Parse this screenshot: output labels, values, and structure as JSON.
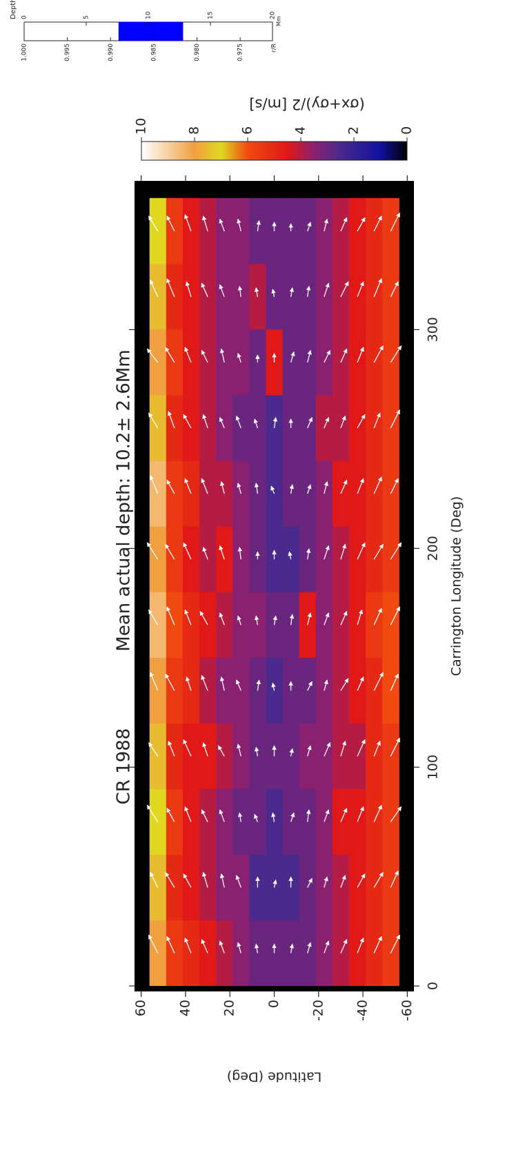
{
  "chart_data": {
    "type": "heatmap",
    "title": "CR 1988",
    "subtitle": "Mean actual depth: 10.2± 2.6Mm",
    "xlabel": "Carrington Longitude (Deg)",
    "ylabel": "Latitude (Deg)",
    "xlim": [
      -2.5,
      368
    ],
    "ylim": [
      -63,
      63
    ],
    "xticks": [
      0,
      100,
      200,
      300
    ],
    "yticks": [
      -60,
      -40,
      -20,
      0,
      20,
      40,
      60
    ],
    "plot_bg": "#000000",
    "arrow_color": "#ffffff",
    "x_edges": [
      0,
      30,
      60,
      90,
      120,
      150,
      180,
      210,
      240,
      270,
      300,
      330,
      360
    ],
    "y_edges": [
      56.25,
      48.75,
      41.25,
      33.75,
      26.25,
      18.75,
      11.25,
      3.75,
      -3.75,
      -11.25,
      -18.75,
      -26.25,
      -33.75,
      -41.25,
      -48.75,
      -56.25
    ],
    "values": [
      [
        8,
        7.5,
        7,
        7.5,
        8,
        8.5,
        8,
        8.5,
        7.5,
        8,
        7.5,
        7
      ],
      [
        5.5,
        5,
        5.5,
        5,
        5.5,
        6,
        5.5,
        5.5,
        5,
        5.5,
        5,
        5.5
      ],
      [
        5,
        4.5,
        4.5,
        4.5,
        5,
        5,
        4.5,
        5,
        4.5,
        4.5,
        4.5,
        4.5
      ],
      [
        4.5,
        4,
        4,
        4.5,
        4,
        4.5,
        4,
        4,
        4,
        4,
        4,
        4
      ],
      [
        4,
        3.5,
        3.5,
        4,
        3.5,
        4,
        4.5,
        4,
        3.5,
        3.5,
        3.5,
        3.5
      ],
      [
        3.5,
        3.5,
        3,
        3.5,
        3.5,
        3.5,
        3.5,
        3.5,
        3,
        3.5,
        3.5,
        3.5
      ],
      [
        3,
        2.5,
        3,
        3,
        3,
        3.5,
        3,
        3,
        3,
        3,
        4,
        3
      ],
      [
        3,
        2.5,
        2.5,
        3,
        2.5,
        3,
        2.5,
        2.5,
        2.5,
        4.5,
        3,
        3
      ],
      [
        3,
        2.5,
        3,
        3,
        3,
        3,
        2.5,
        3,
        3,
        3,
        3,
        3
      ],
      [
        3,
        3,
        3,
        3.5,
        3,
        4.5,
        3,
        3,
        3,
        3,
        3,
        3
      ],
      [
        3.5,
        3.5,
        3.5,
        3.5,
        3.5,
        3.5,
        3.5,
        3.5,
        4,
        3.5,
        3.5,
        3.5
      ],
      [
        4,
        4,
        4.5,
        4,
        4,
        4,
        4,
        4.5,
        4,
        4,
        4,
        4
      ],
      [
        4.5,
        4.5,
        4.5,
        4,
        4.5,
        4.5,
        4.5,
        4.5,
        4.5,
        4.5,
        4.5,
        4.5
      ],
      [
        5,
        5,
        5,
        5,
        5,
        5.5,
        5,
        5,
        5,
        5,
        5,
        5
      ],
      [
        5.5,
        5.5,
        5.5,
        5.5,
        6,
        6,
        5.5,
        5.5,
        5.5,
        5.5,
        5.5,
        5.5
      ]
    ],
    "vx": [
      [
        12,
        10,
        11,
        9,
        12,
        10,
        11,
        12,
        10,
        9,
        11,
        10
      ],
      [
        11,
        10,
        9,
        10,
        11,
        12,
        10,
        9,
        11,
        10,
        12,
        10
      ],
      [
        10,
        9,
        10,
        11,
        9,
        10,
        11,
        10,
        9,
        10,
        10,
        11
      ],
      [
        9,
        10,
        8,
        9,
        10,
        9,
        8,
        10,
        9,
        8,
        9,
        10
      ],
      [
        8,
        9,
        8,
        7,
        9,
        8,
        9,
        8,
        7,
        9,
        8,
        8
      ],
      [
        7,
        8,
        6,
        8,
        7,
        6,
        8,
        7,
        8,
        6,
        7,
        8
      ],
      [
        6,
        7,
        5,
        6,
        7,
        6,
        5,
        7,
        6,
        5,
        6,
        7
      ],
      [
        6,
        5,
        6,
        7,
        5,
        6,
        6,
        5,
        7,
        6,
        5,
        6
      ],
      [
        6,
        7,
        6,
        5,
        6,
        7,
        5,
        6,
        6,
        7,
        6,
        5
      ],
      [
        7,
        6,
        8,
        7,
        6,
        8,
        7,
        6,
        7,
        8,
        7,
        6
      ],
      [
        8,
        7,
        8,
        9,
        7,
        8,
        9,
        8,
        7,
        8,
        9,
        8
      ],
      [
        9,
        8,
        9,
        10,
        8,
        9,
        10,
        9,
        8,
        9,
        10,
        9
      ],
      [
        10,
        9,
        10,
        11,
        9,
        10,
        11,
        10,
        9,
        10,
        10,
        9
      ],
      [
        11,
        10,
        11,
        10,
        12,
        11,
        10,
        11,
        10,
        11,
        12,
        10
      ],
      [
        12,
        11,
        10,
        12,
        11,
        12,
        11,
        10,
        12,
        11,
        10,
        12
      ]
    ],
    "vy": [
      [
        6,
        5,
        7,
        6,
        5,
        6,
        7,
        5,
        6,
        7,
        5,
        6
      ],
      [
        5,
        6,
        5,
        4,
        6,
        5,
        6,
        5,
        4,
        6,
        5,
        5
      ],
      [
        4,
        5,
        4,
        5,
        3,
        4,
        5,
        4,
        5,
        4,
        3,
        4
      ],
      [
        4,
        3,
        4,
        3,
        4,
        5,
        3,
        4,
        3,
        4,
        4,
        3
      ],
      [
        3,
        2,
        3,
        4,
        2,
        3,
        3,
        2,
        3,
        2,
        3,
        3
      ],
      [
        2,
        3,
        1,
        2,
        3,
        2,
        1,
        2,
        3,
        2,
        1,
        2
      ],
      [
        1,
        0,
        2,
        1,
        -1,
        1,
        0,
        1,
        2,
        0,
        1,
        -1
      ],
      [
        0,
        -1,
        1,
        0,
        1,
        -1,
        0,
        2,
        -1,
        0,
        1,
        0
      ],
      [
        -1,
        0,
        -2,
        -1,
        0,
        -1,
        1,
        -1,
        0,
        -2,
        -1,
        0
      ],
      [
        -2,
        -3,
        -1,
        -2,
        -3,
        -2,
        -1,
        -2,
        -3,
        -2,
        -1,
        -2
      ],
      [
        -3,
        -2,
        -3,
        -4,
        -2,
        -3,
        -3,
        -2,
        -3,
        -4,
        -3,
        -2
      ],
      [
        -4,
        -3,
        -4,
        -3,
        -5,
        -4,
        -3,
        -4,
        -3,
        -4,
        -5,
        -4
      ],
      [
        -4,
        -5,
        -4,
        -5,
        -4,
        -3,
        -5,
        -4,
        -5,
        -4,
        -4,
        -5
      ],
      [
        -5,
        -6,
        -5,
        -4,
        -6,
        -5,
        -6,
        -5,
        -4,
        -6,
        -5,
        -5
      ],
      [
        -6,
        -5,
        -7,
        -6,
        -5,
        -6,
        -7,
        -5,
        -6,
        -7,
        -5,
        -6
      ]
    ],
    "colorbar": {
      "label": "(σx+σy)/2 [m/s]",
      "clim": [
        0,
        10
      ],
      "ticks": [
        0,
        2,
        4,
        6,
        8,
        10
      ],
      "colormap": [
        {
          "value": 0,
          "color": "#000000"
        },
        {
          "value": 1,
          "color": "#1010a0"
        },
        {
          "value": 2.5,
          "color": "#4a2a8c"
        },
        {
          "value": 3.5,
          "color": "#8a2070"
        },
        {
          "value": 4.5,
          "color": "#e01818"
        },
        {
          "value": 6,
          "color": "#f04a10"
        },
        {
          "value": 7,
          "color": "#e0d820"
        },
        {
          "value": 8,
          "color": "#f0a040"
        },
        {
          "value": 10,
          "color": "#ffffff"
        }
      ]
    },
    "inset": {
      "label": "Depth",
      "unit": "Mm",
      "depth_lim": [
        0,
        20
      ],
      "depth_ticks": [
        0,
        5,
        10,
        15,
        20
      ],
      "r_label": "r/R",
      "rlim": [
        1,
        0.97126
      ],
      "r_ticks": [
        {
          "value": 1,
          "label": "1.000"
        },
        0.995,
        {
          "value": 0.99,
          "label": "0.990"
        },
        0.985,
        {
          "value": 0.98,
          "label": "0.980"
        },
        0.975
      ],
      "band": {
        "value": 10.2,
        "error": 2.6,
        "color": "#0000ff"
      }
    }
  }
}
